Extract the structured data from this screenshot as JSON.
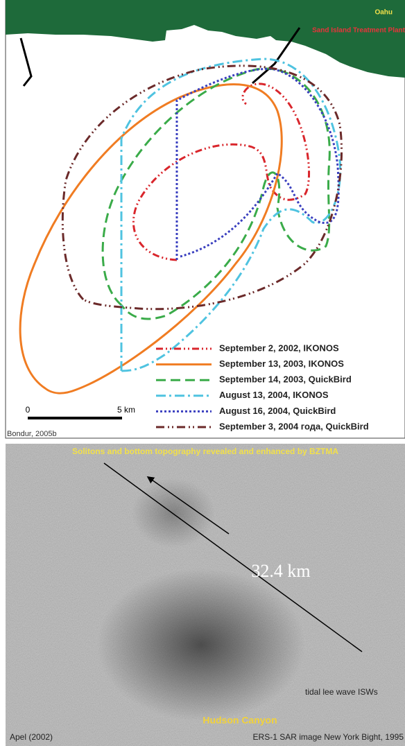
{
  "top_panel": {
    "place_labels": [
      "Oahu",
      "Sand Island Treatment Plant"
    ],
    "legend": [
      {
        "name": "September 2, 2002, IKONOS",
        "color": "#d9262c"
      },
      {
        "name": "September 13, 2003, IKONOS",
        "color": "#f07c22"
      },
      {
        "name": "September 14, 2003, QuickBird",
        "color": "#3aab49"
      },
      {
        "name": "August 13, 2004, IKONOS",
        "color": "#4fc3e0"
      },
      {
        "name": "August 16, 2004, QuickBird",
        "color": "#3a3fbf"
      },
      {
        "name": "September 3, 2004 года, QuickBird",
        "color": "#6b2a2a"
      }
    ],
    "scale_labels": [
      "0",
      "5 km"
    ],
    "credit": "Bondur, 2005b"
  },
  "bottom_panel": {
    "title": "Solitons and bottom topography revealed and enhanced by BZTMA",
    "distance_label": "32.4 km",
    "annotation": "tidal lee wave ISWs",
    "feature_label": "Hudson Canyon",
    "credit": "Apel (2002)",
    "source": "ERS-1 SAR image New York Bight, 1995"
  }
}
